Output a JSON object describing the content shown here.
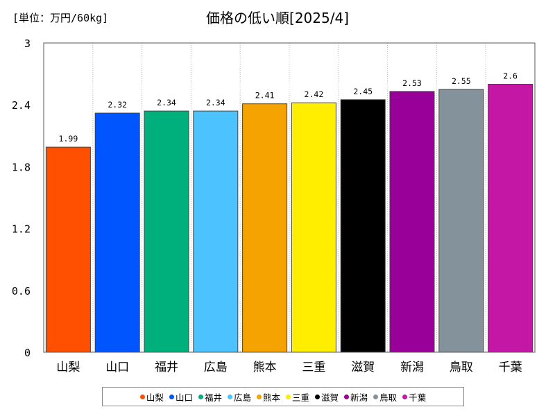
{
  "chart_data": {
    "type": "bar",
    "title": "価格の低い順[2025/4]",
    "unit_label": "[単位：万円/60kg]",
    "categories": [
      "山梨",
      "山口",
      "福井",
      "広島",
      "熊本",
      "三重",
      "滋賀",
      "新潟",
      "鳥取",
      "千葉"
    ],
    "values": [
      1.99,
      2.32,
      2.34,
      2.34,
      2.41,
      2.42,
      2.45,
      2.53,
      2.55,
      2.6
    ],
    "value_labels": [
      "1.99",
      "2.32",
      "2.34",
      "2.34",
      "2.41",
      "2.42",
      "2.45",
      "2.53",
      "2.55",
      "2.6"
    ],
    "colors": [
      "#ff4f00",
      "#0055ff",
      "#00b07c",
      "#4cc3ff",
      "#f5a300",
      "#ffee00",
      "#000000",
      "#990099",
      "#84929c",
      "#c417a6"
    ],
    "ylim": [
      0,
      3
    ],
    "yticks": [
      0,
      0.6,
      1.2,
      1.8,
      2.4,
      3
    ],
    "ytick_labels": [
      "0",
      "0.6",
      "1.2",
      "1.8",
      "2.4",
      "3"
    ],
    "grid": "vertical dotted",
    "legend_position": "bottom"
  }
}
